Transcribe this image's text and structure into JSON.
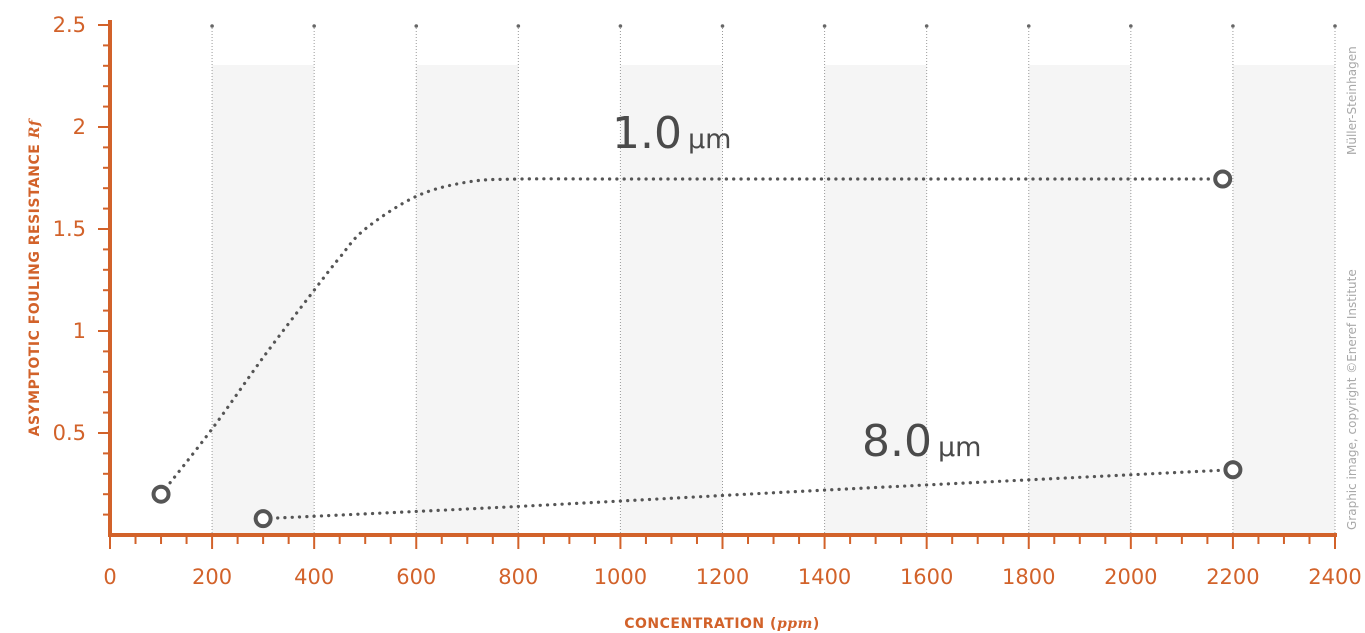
{
  "colors": {
    "axis": "#d2622a",
    "series": "#555555",
    "grid": "#9a9a9a",
    "band": "#f5f5f5",
    "credit": "#a8a8a8"
  },
  "chart_data": {
    "type": "line",
    "xlabel_main": "CONCENTRATION (",
    "xlabel_unit": "ppm",
    "xlabel_close": ")",
    "ylabel_main": "ASYMPTOTIC FOULING RESISTANCE ",
    "ylabel_unit": "Rf",
    "xlim": [
      0,
      2400
    ],
    "ylim": [
      0,
      2.5
    ],
    "x_ticks": [
      0,
      200,
      400,
      600,
      800,
      1000,
      1200,
      1400,
      1600,
      1800,
      2000,
      2200,
      2400
    ],
    "y_ticks": [
      0.5,
      1,
      1.5,
      2,
      2.5
    ],
    "grid": true,
    "series": [
      {
        "name": "1.0",
        "unit": "µm",
        "x": [
          100,
          200,
          300,
          400,
          450,
          500,
          600,
          700,
          800,
          1000,
          1400,
          1800,
          2180
        ],
        "y": [
          0.2,
          0.52,
          0.87,
          1.2,
          1.36,
          1.5,
          1.66,
          1.73,
          1.745,
          1.745,
          1.745,
          1.745,
          1.745
        ],
        "endpoints": [
          [
            100,
            0.2
          ],
          [
            2180,
            1.745
          ]
        ]
      },
      {
        "name": "8.0",
        "unit": "µm",
        "x": [
          300,
          800,
          1400,
          2200
        ],
        "y": [
          0.08,
          0.14,
          0.22,
          0.32
        ],
        "endpoints": [
          [
            300,
            0.08
          ],
          [
            2200,
            0.32
          ]
        ]
      }
    ],
    "credits": [
      "Graphic image, copyright ©Eneref Institute",
      "Müller-Steinhagen"
    ]
  }
}
